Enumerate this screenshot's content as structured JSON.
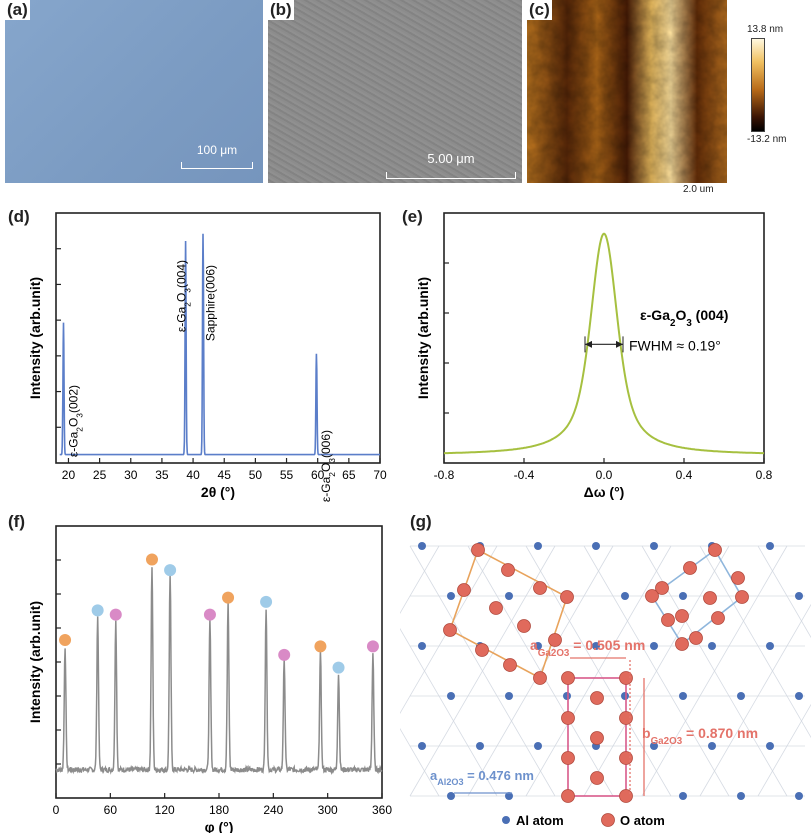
{
  "panels": {
    "a": {
      "label": "(a)",
      "scalebar": "100 μm",
      "color": "#7f9fc6"
    },
    "b": {
      "label": "(b)",
      "scalebar": "5.00 μm",
      "color": "#8a8a8a"
    },
    "c": {
      "label": "(c)",
      "scale_max": "13.8 nm",
      "scale_min": "-13.2 nm",
      "scalebar": "2.0 um"
    },
    "d": {
      "label": "(d)"
    },
    "e": {
      "label": "(e)"
    },
    "f": {
      "label": "(f)"
    },
    "g": {
      "label": "(g)"
    }
  },
  "chart_data": [
    {
      "id": "d",
      "type": "line",
      "xlabel": "2θ (°)",
      "ylabel": "Intensity (arb.unit)",
      "xlim": [
        18,
        70
      ],
      "xticks": [
        "20",
        "25",
        "30",
        "35",
        "40",
        "45",
        "50",
        "55",
        "60",
        "65",
        "70"
      ],
      "color": "#5b7ec9",
      "peaks": [
        {
          "x": 19.2,
          "y": 0.55
        },
        {
          "x": 38.8,
          "y": 0.89
        },
        {
          "x": 41.6,
          "y": 0.92
        },
        {
          "x": 59.8,
          "y": 0.42
        }
      ],
      "annotations": [
        {
          "pre": "ε-Ga",
          "s1": "2",
          "mid": "O",
          "s2": "3",
          "post": "(002)",
          "x": 20.5
        },
        {
          "pre": "ε-Ga",
          "s1": "2",
          "mid": "O",
          "s2": "3",
          "post": "(004)",
          "x": 37.8
        },
        {
          "pre": "",
          "s1": "",
          "mid": "Sapphire(006)",
          "s2": "",
          "post": "",
          "x": 42.5
        },
        {
          "pre": "ε-Ga",
          "s1": "2",
          "mid": "O",
          "s2": "3",
          "post": "(006)",
          "x": 61.0
        }
      ]
    },
    {
      "id": "e",
      "type": "line",
      "xlabel": "Δω (°)",
      "ylabel": "Intensity (arb.unit)",
      "xlim": [
        -0.8,
        0.8
      ],
      "xticks": [
        "-0.8",
        "-0.4",
        "0.0",
        "0.4",
        "0.8"
      ],
      "color": "#a6c040",
      "peak": {
        "center": 0.0,
        "fwhm": 0.19,
        "height": 0.93
      },
      "title_pre": "ε-Ga",
      "title_s1": "2",
      "title_mid": "O",
      "title_s2": "3",
      "title_post": " (004)",
      "fwhm_label": "FWHM ≈ 0.19°"
    },
    {
      "id": "f",
      "type": "line",
      "xlabel": "φ (°)",
      "ylabel": "Intensity (arb.unit)",
      "xlim": [
        0,
        360
      ],
      "xticks": [
        "0",
        "60",
        "120",
        "180",
        "240",
        "300",
        "360"
      ],
      "color": "#8c8c8c",
      "peaks": [
        {
          "x": 10,
          "y": 0.58,
          "dot": "#f0a35e"
        },
        {
          "x": 46,
          "y": 0.72,
          "dot": "#9fcbe8"
        },
        {
          "x": 66,
          "y": 0.7,
          "dot": "#d98ac6"
        },
        {
          "x": 106,
          "y": 0.96,
          "dot": "#f0a35e"
        },
        {
          "x": 126,
          "y": 0.91,
          "dot": "#9fcbe8"
        },
        {
          "x": 170,
          "y": 0.7,
          "dot": "#d98ac6"
        },
        {
          "x": 190,
          "y": 0.78,
          "dot": "#f0a35e"
        },
        {
          "x": 232,
          "y": 0.76,
          "dot": "#9fcbe8"
        },
        {
          "x": 252,
          "y": 0.51,
          "dot": "#d98ac6"
        },
        {
          "x": 292,
          "y": 0.55,
          "dot": "#f0a35e"
        },
        {
          "x": 312,
          "y": 0.45,
          "dot": "#9fcbe8"
        },
        {
          "x": 350,
          "y": 0.55,
          "dot": "#d98ac6"
        }
      ]
    }
  ],
  "lattice": {
    "a_ga_pre": "a",
    "a_ga_sub": "Ga2O3",
    "a_ga_val": " = 0.505 nm",
    "b_ga_pre": "b",
    "b_ga_sub": "Ga2O3",
    "b_ga_val": " = 0.870 nm",
    "a_al_pre": "a",
    "a_al_sub": "Al2O3",
    "a_al_val": " = 0.476 nm",
    "legend_al": "Al atom",
    "legend_o": "O atom",
    "al_color": "#4a6fb5",
    "o_color": "#e06a5c",
    "orange": "#e8a35c",
    "blue": "#8fb6dc",
    "pink": "#d85a8a",
    "ga_label_color": "#e4736a",
    "al_label_color": "#6d91cc"
  }
}
